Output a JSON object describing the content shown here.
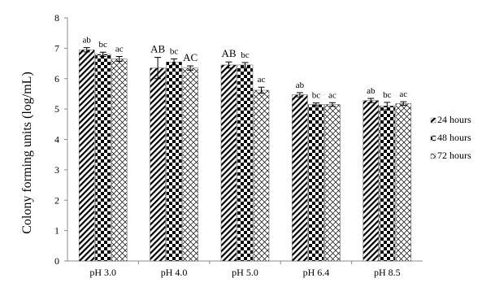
{
  "chart_data": {
    "type": "bar",
    "title": "",
    "xlabel": "",
    "ylabel": "Colony forming units (log/mL)",
    "ylim": [
      0,
      8
    ],
    "yticks": [
      0,
      1,
      2,
      3,
      4,
      5,
      6,
      7,
      8
    ],
    "categories": [
      "pH 3.0",
      "pH 4.0",
      "pH 5.0",
      "pH 6.4",
      "pH 8.5"
    ],
    "legend_position": "right",
    "grid": false,
    "series": [
      {
        "name": "24 hours",
        "pattern": "diagonal-stripes",
        "values": [
          6.95,
          6.35,
          6.45,
          5.47,
          5.28
        ],
        "errors": [
          0.07,
          0.35,
          0.1,
          0.07,
          0.07
        ],
        "labels": [
          "ab",
          "AB",
          "AB",
          "ab",
          "ab"
        ]
      },
      {
        "name": "48 hours",
        "pattern": "checkerboard",
        "values": [
          6.8,
          6.55,
          6.45,
          5.15,
          5.1
        ],
        "errors": [
          0.07,
          0.1,
          0.08,
          0.05,
          0.12
        ],
        "labels": [
          "bc",
          "bc",
          "bc",
          "bc",
          "bc"
        ]
      },
      {
        "name": "72 hours",
        "pattern": "crosshatch",
        "values": [
          6.65,
          6.35,
          5.62,
          5.15,
          5.18
        ],
        "errors": [
          0.08,
          0.07,
          0.1,
          0.06,
          0.06
        ],
        "labels": [
          "ac",
          "AC",
          "ac",
          "ac",
          "ac"
        ]
      }
    ]
  }
}
